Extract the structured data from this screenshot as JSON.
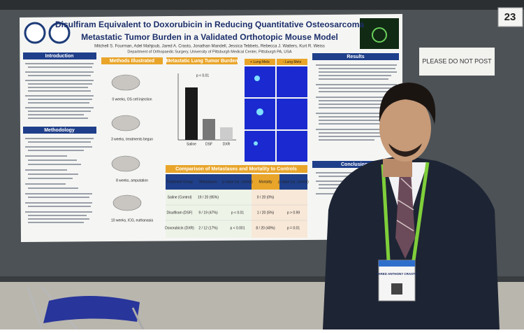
{
  "board_number": "23",
  "sign": "PLEASE DO NOT POST",
  "poster": {
    "title_lines": [
      "Disulfiram Equivalent to Doxorubicin in Reducing Quantitative Osteosarcoma",
      "Metastatic Tumor Burden in a Validated Orthotopic Mouse Model"
    ],
    "authors": "Mitchell S. Fourman, Adel Mahjoub, Jared A. Crasto, Jonathan Mandell, Jessica Tebbets, Rebecca J. Watters, Kurt R. Weiss",
    "affiliation": "Department of Orthopaedic Surgery, University of Pittsburgh Medical Center, Pittsburgh PA, USA",
    "sections": {
      "introduction": "Introduction",
      "methodology": "Methodology",
      "methods_illustrated": "Methods Illustrated",
      "burden": "Metastatic Lung Tumor Burden",
      "results": "Results",
      "conclusions": "Conclusions"
    },
    "method_steps": [
      "0 weeks, OS cell injection",
      "3 weeks, treatments begun",
      "8 weeks, amputation",
      "10 weeks, ICG, euthanasia"
    ],
    "burden_chart": {
      "p_label": "p < 0.01",
      "categories": [
        "Saline",
        "DSF",
        "DXR"
      ]
    },
    "image_headers": [
      "+ Lung Mets",
      "- Lung Mets"
    ],
    "table": {
      "title": "Comparison of Metastases and Mortality to Controls",
      "header": [
        "Treatment Group",
        "Metastases",
        "p value (vs. control)",
        "Mortality",
        "p value (vs. control)"
      ],
      "rows": [
        {
          "group": "Saline (Control)",
          "metastases": "19 / 20 (95%)",
          "mortality": "0 / 20 (0%)"
        },
        {
          "group": "Disulfiram (DSF)",
          "metastases": "9 / 19 (47%)",
          "met_p": "p < 0.01",
          "mortality": "1 / 20 (5%)",
          "mort_p": "p > 0.99"
        },
        {
          "group": "Doxorubicin (DXR)",
          "metastases": "2 / 12 (17%)",
          "met_p": "p < 0.001",
          "mortality": "8 / 20 (40%)",
          "mort_p": "p = 0.01"
        }
      ]
    }
  },
  "badge": "JARED ANTHONY CRASTO"
}
